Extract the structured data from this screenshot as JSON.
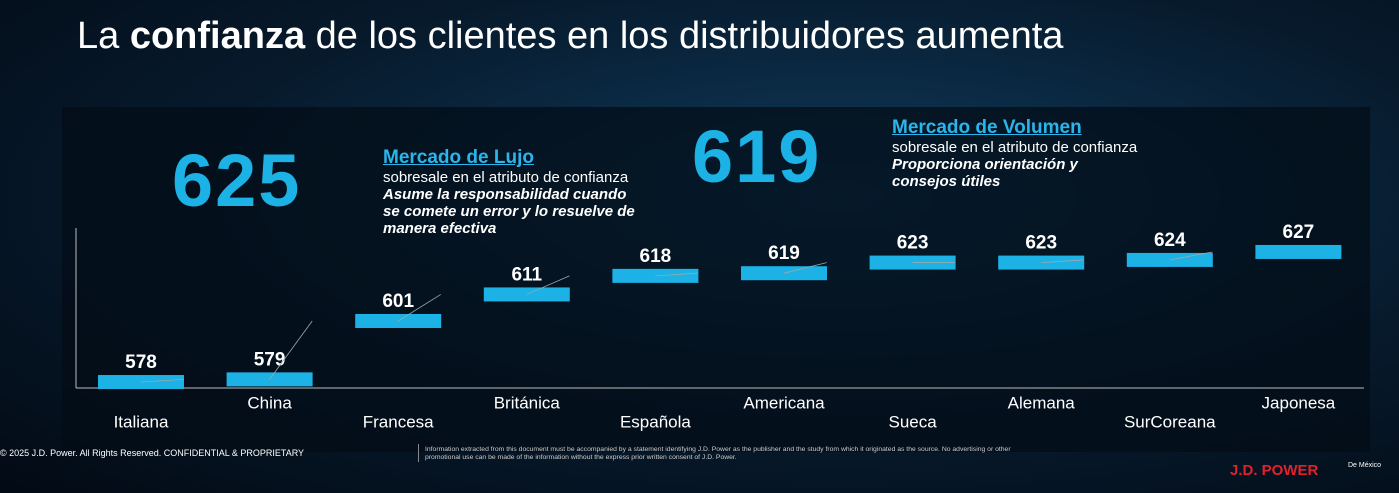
{
  "title": {
    "before": "La ",
    "bold": "confianza",
    "after": " de los clientes en los distribuidores aumenta"
  },
  "chart_data": {
    "type": "bar",
    "categories": [
      "Italiana",
      "China",
      "Francesa",
      "Británica",
      "Española",
      "Americana",
      "Sueca",
      "Alemana",
      "SurCoreana",
      "Japonesa"
    ],
    "values": [
      578,
      579,
      601,
      611,
      618,
      619,
      623,
      623,
      624,
      627
    ],
    "color": "#1cb2e6",
    "ylim": [
      575,
      630
    ]
  },
  "callouts": [
    {
      "number": 625,
      "heading": "Mercado de Lujo",
      "text": "sobresale en el atributo de confianza",
      "emphasis": "Asume la responsabilidad cuando se comete un error y lo resuelve de manera efectiva"
    },
    {
      "number": 619,
      "heading": "Mercado de Volumen",
      "text": "sobresale en el atributo de confianza",
      "emphasis": "Proporciona orientación y consejos útiles"
    }
  ],
  "footer": {
    "copyright": "© 2025 J.D. Power. All Rights Reserved. CONFIDENTIAL & PROPRIETARY",
    "notice": "Information extracted from this document must be accompanied by a statement identifying J.D. Power as the publisher and the study from which it originated as the source. No advertising or other promotional use can be made of the information without the express prior written consent of J.D. Power.",
    "logo": "J.D. POWER",
    "logo_sub": "De México"
  }
}
